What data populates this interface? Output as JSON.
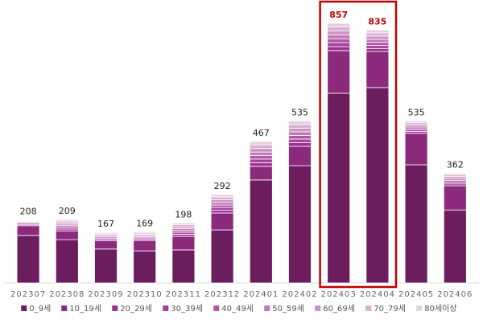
{
  "chart_data": {
    "type": "stacked_bar",
    "categories": [
      "202307",
      "202308",
      "202309",
      "202310",
      "202311",
      "202312",
      "202401",
      "202402",
      "202403",
      "202404",
      "202405",
      "202406"
    ],
    "totals": [
      208,
      209,
      167,
      169,
      198,
      292,
      467,
      535,
      857,
      835,
      535,
      362
    ],
    "series": [
      {
        "name": "0_9세",
        "color": "#6b1d5e",
        "values": [
          157,
          143,
          112,
          106,
          109,
          175,
          340,
          387,
          626,
          645,
          390,
          241
        ]
      },
      {
        "name": "10_19세",
        "color": "#8c2a7d",
        "values": [
          32,
          29,
          27,
          34,
          45,
          56,
          45,
          64,
          141,
          119,
          104,
          80
        ]
      },
      {
        "name": "20_29세",
        "color": "#9a3190",
        "values": [
          4,
          6,
          5,
          5,
          7,
          9,
          12,
          12,
          13,
          10,
          6,
          6
        ]
      },
      {
        "name": "30_39세",
        "color": "#a8409c",
        "values": [
          4,
          6,
          4,
          4,
          6,
          9,
          12,
          12,
          13,
          10,
          6,
          6
        ]
      },
      {
        "name": "40_49세",
        "color": "#b555a8",
        "values": [
          3,
          5,
          4,
          4,
          6,
          8,
          12,
          12,
          13,
          10,
          6,
          6
        ]
      },
      {
        "name": "50_59세",
        "color": "#c27ab7",
        "values": [
          3,
          5,
          4,
          4,
          6,
          9,
          11,
          12,
          13,
          10,
          6,
          6
        ]
      },
      {
        "name": "60_69세",
        "color": "#cd93c3",
        "values": [
          2,
          5,
          4,
          4,
          6,
          9,
          12,
          12,
          13,
          11,
          6,
          6
        ]
      },
      {
        "name": "70_79세",
        "color": "#d9b0d3",
        "values": [
          2,
          5,
          4,
          4,
          7,
          9,
          12,
          12,
          13,
          10,
          6,
          6
        ]
      },
      {
        "name": "80세이상",
        "color": "#e6cfe2",
        "values": [
          1,
          5,
          3,
          4,
          6,
          8,
          11,
          12,
          12,
          10,
          5,
          5
        ]
      }
    ],
    "highlight": [
      8,
      9
    ],
    "highlight_color": "#c00000"
  }
}
